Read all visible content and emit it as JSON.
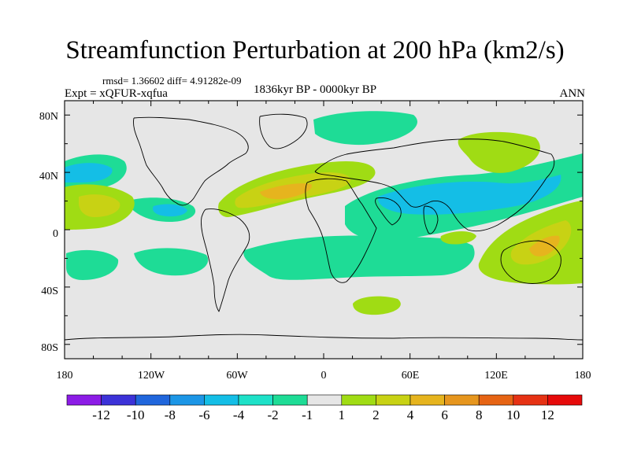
{
  "title": "Streamfunction Perturbation at 200 hPa (km2/s)",
  "stats_line": "rmsd= 1.36602 diff= 4.91282e-09",
  "experiment_line": "Expt = xQFUR-xqfua",
  "period": "1836kyr BP - 0000kyr BP",
  "season": "ANN",
  "lat_labels": [
    "80N",
    "40N",
    "0",
    "40S",
    "80S"
  ],
  "lon_labels": [
    "180",
    "120W",
    "60W",
    "0",
    "60E",
    "120E",
    "180"
  ],
  "colorbar": {
    "labels": [
      "-12",
      "-10",
      "-8",
      "-6",
      "-4",
      "-2",
      "-1",
      "1",
      "2",
      "4",
      "6",
      "8",
      "10",
      "12"
    ],
    "colors": [
      "#8c1ce6",
      "#3c32d8",
      "#2066dc",
      "#1c96e6",
      "#14bee6",
      "#1ee1c8",
      "#1edc96",
      "#e6e6e6",
      "#a0dc14",
      "#c8d214",
      "#e6b41e",
      "#e6961e",
      "#e66414",
      "#e63214",
      "#e60a0a"
    ]
  }
}
